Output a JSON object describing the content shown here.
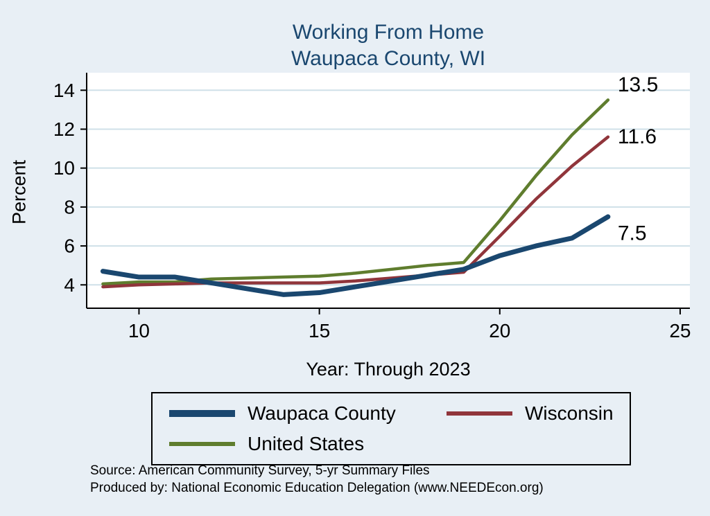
{
  "header": {
    "title_line1": "Working From Home",
    "title_line2": "Waupaca County, WI"
  },
  "chart_data": {
    "type": "line",
    "title": "Working From Home — Waupaca County, WI",
    "xlabel": "Year: Through 2023",
    "ylabel": "Percent",
    "x": [
      9,
      10,
      11,
      12,
      13,
      14,
      15,
      16,
      17,
      18,
      19,
      20,
      21,
      22,
      23
    ],
    "x_tick_values": [
      10,
      15,
      20,
      25
    ],
    "y_tick_values": [
      4,
      6,
      8,
      10,
      12,
      14
    ],
    "xlim": [
      8.55,
      25.27
    ],
    "ylim": [
      2.8,
      14.9
    ],
    "grid": "horizontal",
    "legend_position": "bottom",
    "series": [
      {
        "name": "Waupaca County",
        "color": "#1a476f",
        "end_label": "7.5",
        "values": [
          4.7,
          4.4,
          4.4,
          4.1,
          3.8,
          3.5,
          3.6,
          3.9,
          4.2,
          4.5,
          4.8,
          5.5,
          6.0,
          6.4,
          7.5
        ]
      },
      {
        "name": "Wisconsin",
        "color": "#90353b",
        "end_label": "11.6",
        "values": [
          3.9,
          4.0,
          4.05,
          4.1,
          4.1,
          4.1,
          4.1,
          4.2,
          4.35,
          4.5,
          4.65,
          6.5,
          8.4,
          10.1,
          11.6
        ]
      },
      {
        "name": "United States",
        "color": "#5f7d2e",
        "end_label": "13.5",
        "values": [
          4.05,
          4.15,
          4.15,
          4.3,
          4.35,
          4.4,
          4.45,
          4.6,
          4.8,
          5.0,
          5.15,
          7.3,
          9.6,
          11.7,
          13.5
        ]
      }
    ]
  },
  "footer": {
    "line1": "Source: American Community Survey, 5-yr Summary Files",
    "line2": "Produced by: National Economic Education Delegation (www.NEEDEcon.org)"
  },
  "colors": {
    "background": "#e8eff5",
    "plot_background": "#ffffff",
    "gridline": "#cfe0e8",
    "axis": "#000000",
    "title": "#1a476f"
  }
}
